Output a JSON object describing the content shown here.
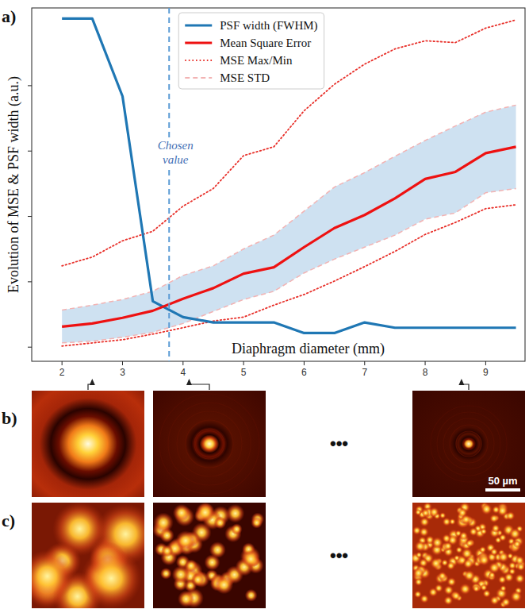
{
  "chart_data": {
    "type": "line",
    "xlabel": "Diaphragm diameter (mm)",
    "ylabel": "Evolution of MSE & PSF width (a.u.)",
    "x": [
      2,
      2.5,
      3,
      3.5,
      4,
      4.5,
      5,
      5.5,
      6,
      6.5,
      7,
      7.5,
      8,
      8.5,
      9,
      9.5
    ],
    "series": [
      {
        "name": "PSF width (FWHM)",
        "type": "line",
        "color": "#1f77b4",
        "line_style": "solid",
        "values": [
          97,
          97,
          75,
          17,
          12.5,
          11,
          11,
          11,
          8,
          8,
          11,
          9.5,
          9.5,
          9.5,
          9.5,
          9.5
        ]
      },
      {
        "name": "Mean Square Error",
        "type": "line",
        "color": "#ee1111",
        "line_style": "solid",
        "values": [
          9.8,
          10.7,
          12.3,
          14.3,
          17.7,
          20.7,
          24.8,
          26.6,
          32.3,
          37.7,
          41.4,
          46.1,
          51.6,
          53.6,
          58.9,
          60.7
        ]
      },
      {
        "name": "MSE Max/Min",
        "type": "range",
        "color": "#e8302a",
        "line_style": "dotted",
        "upper": [
          27,
          29.5,
          34.1,
          36.8,
          43.9,
          48.9,
          58.2,
          60.7,
          70.9,
          78.4,
          84.1,
          88.4,
          90.7,
          90.2,
          94.3,
          96.6
        ],
        "lower": [
          4.3,
          5.2,
          6.1,
          7.7,
          9.5,
          11.4,
          12.5,
          15.9,
          18.9,
          22.7,
          26.8,
          31.1,
          35.9,
          39.3,
          43.2,
          44.3
        ]
      },
      {
        "name": "MSE STD",
        "type": "band",
        "color": "#f2b3b3",
        "line_style": "dashed",
        "upper": [
          14.5,
          15.9,
          17.5,
          19.8,
          24.3,
          27,
          31.8,
          35.7,
          42.5,
          49.3,
          53.4,
          58,
          62.5,
          66.6,
          70.5,
          72.5
        ],
        "lower": [
          5.2,
          5.7,
          6.8,
          8.2,
          10.7,
          14.1,
          17.5,
          19.8,
          25,
          28.9,
          32.3,
          35.7,
          40.2,
          42,
          47.7,
          48.9
        ]
      }
    ],
    "xlim": [
      1.5,
      9.65
    ],
    "ylim": [
      0,
      100
    ],
    "xticks": [
      2,
      3,
      4,
      5,
      6,
      7,
      8,
      9
    ],
    "yticks": [
      4,
      22.5,
      41,
      59.5,
      78
    ],
    "tick_labels": "x",
    "grid": false,
    "legend": "upper center",
    "annotations": [
      {
        "text": "Chosen value",
        "x": 3.77
      }
    ]
  },
  "panel_labels": [
    "a)",
    "b)",
    "c)"
  ],
  "images": {
    "diameters": [
      2.5,
      4.1,
      8.6
    ],
    "scale_bar": "50 µm",
    "ellipsis": "•••"
  }
}
